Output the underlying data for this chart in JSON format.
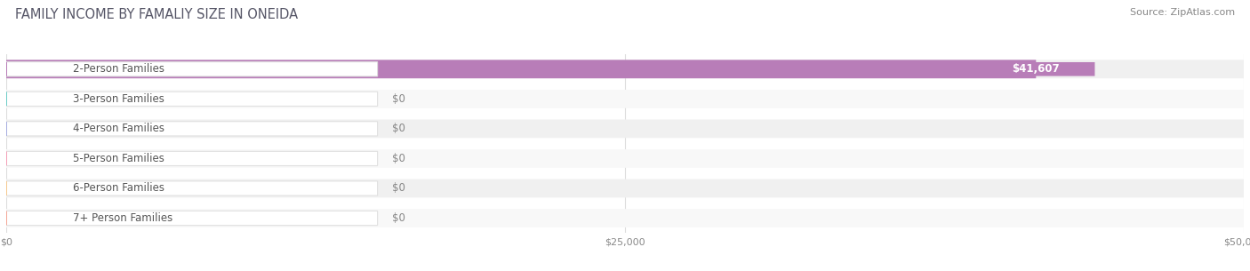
{
  "title": "FAMILY INCOME BY FAMALIY SIZE IN ONEIDA",
  "source": "Source: ZipAtlas.com",
  "categories": [
    "2-Person Families",
    "3-Person Families",
    "4-Person Families",
    "5-Person Families",
    "6-Person Families",
    "7+ Person Families"
  ],
  "values": [
    41607,
    0,
    0,
    0,
    0,
    0
  ],
  "bar_colors": [
    "#b87db8",
    "#6eccc8",
    "#a8aee0",
    "#f4a0b8",
    "#f5c990",
    "#f4a898"
  ],
  "xlim_max": 50000,
  "xticks": [
    0,
    25000,
    50000
  ],
  "xticklabels": [
    "$0",
    "$25,000",
    "$50,000"
  ],
  "value_labels": [
    "$41,607",
    "$0",
    "$0",
    "$0",
    "$0",
    "$0"
  ],
  "title_fontsize": 10.5,
  "source_fontsize": 8,
  "label_fontsize": 8.5,
  "tick_fontsize": 8,
  "background_color": "#ffffff",
  "row_bg_odd": "#f0f0f0",
  "row_bg_even": "#f8f8f8",
  "grid_color": "#dddddd",
  "label_text_color": "#555555"
}
